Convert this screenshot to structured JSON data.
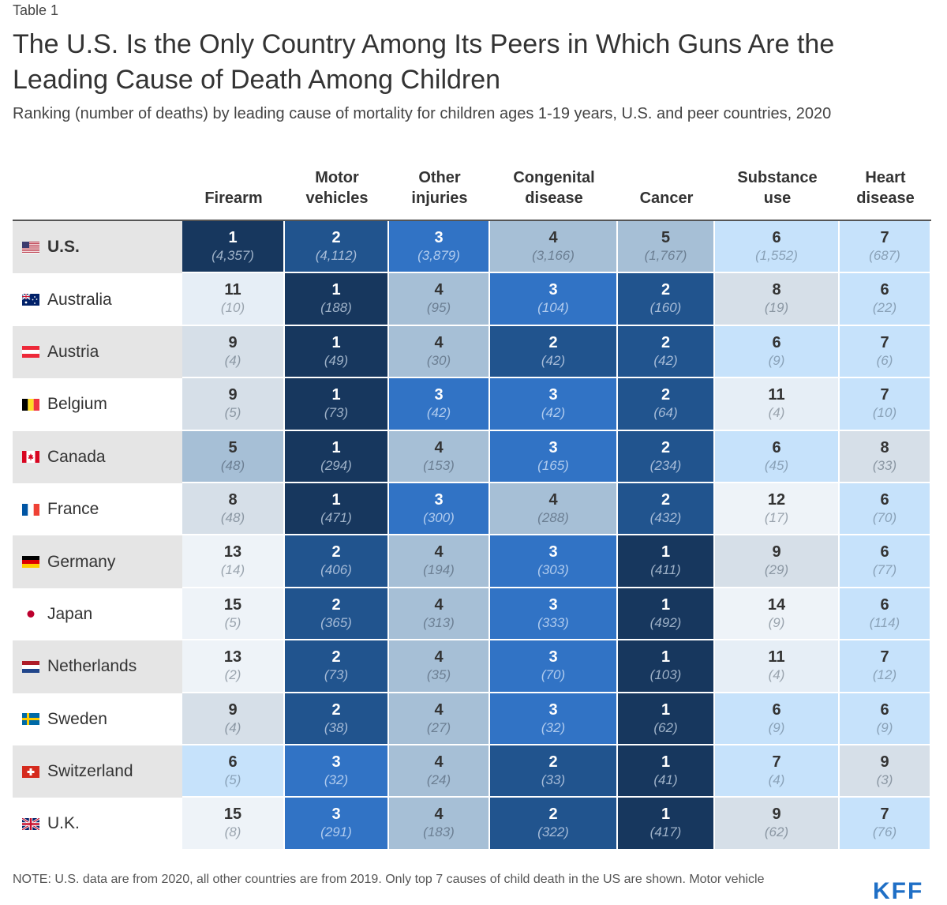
{
  "label": "Table 1",
  "title": "The U.S. Is the Only Country Among Its Peers in Which Guns Are the Leading Cause of Death Among Children",
  "subtitle": "Ranking (number of deaths) by leading cause of mortality for children ages 1-19 years, U.S. and peer countries, 2020",
  "note": "NOTE: U.S. data are from 2020, all other countries are from 2019. Only top 7 causes of child death in the US are shown. Motor vehicle",
  "logo": "KFF",
  "chart_data": {
    "type": "table",
    "columns": [
      {
        "key": "firearm",
        "lines": [
          "",
          "Firearm"
        ]
      },
      {
        "key": "motor_vehicles",
        "lines": [
          "Motor",
          "vehicles"
        ]
      },
      {
        "key": "other_injuries",
        "lines": [
          "Other",
          "injuries"
        ]
      },
      {
        "key": "congenital_disease",
        "lines": [
          "Congenital",
          "disease"
        ]
      },
      {
        "key": "cancer",
        "lines": [
          "",
          "Cancer"
        ]
      },
      {
        "key": "substance_use",
        "lines": [
          "Substance",
          "use"
        ]
      },
      {
        "key": "heart_disease",
        "lines": [
          "Heart",
          "disease"
        ]
      }
    ],
    "rows": [
      {
        "country": "U.S.",
        "flag": "us-flag-icon",
        "highlight": true,
        "ranks": [
          1,
          2,
          3,
          4,
          5,
          6,
          7
        ],
        "deaths": [
          "(4,357)",
          "(4,112)",
          "(3,879)",
          "(3,166)",
          "(1,767)",
          "(1,552)",
          "(687)"
        ]
      },
      {
        "country": "Australia",
        "flag": "australia-flag-icon",
        "ranks": [
          11,
          1,
          4,
          3,
          2,
          8,
          6
        ],
        "deaths": [
          "(10)",
          "(188)",
          "(95)",
          "(104)",
          "(160)",
          "(19)",
          "(22)"
        ]
      },
      {
        "country": "Austria",
        "flag": "austria-flag-icon",
        "ranks": [
          9,
          1,
          4,
          2,
          2,
          6,
          7
        ],
        "deaths": [
          "(4)",
          "(49)",
          "(30)",
          "(42)",
          "(42)",
          "(9)",
          "(6)"
        ]
      },
      {
        "country": "Belgium",
        "flag": "belgium-flag-icon",
        "ranks": [
          9,
          1,
          3,
          3,
          2,
          11,
          7
        ],
        "deaths": [
          "(5)",
          "(73)",
          "(42)",
          "(42)",
          "(64)",
          "(4)",
          "(10)"
        ]
      },
      {
        "country": "Canada",
        "flag": "canada-flag-icon",
        "ranks": [
          5,
          1,
          4,
          3,
          2,
          6,
          8
        ],
        "deaths": [
          "(48)",
          "(294)",
          "(153)",
          "(165)",
          "(234)",
          "(45)",
          "(33)"
        ]
      },
      {
        "country": "France",
        "flag": "france-flag-icon",
        "ranks": [
          8,
          1,
          3,
          4,
          2,
          12,
          6
        ],
        "deaths": [
          "(48)",
          "(471)",
          "(300)",
          "(288)",
          "(432)",
          "(17)",
          "(70)"
        ]
      },
      {
        "country": "Germany",
        "flag": "germany-flag-icon",
        "ranks": [
          13,
          2,
          4,
          3,
          1,
          9,
          6
        ],
        "deaths": [
          "(14)",
          "(406)",
          "(194)",
          "(303)",
          "(411)",
          "(29)",
          "(77)"
        ]
      },
      {
        "country": "Japan",
        "flag": "japan-flag-icon",
        "ranks": [
          15,
          2,
          4,
          3,
          1,
          14,
          6
        ],
        "deaths": [
          "(5)",
          "(365)",
          "(313)",
          "(333)",
          "(492)",
          "(9)",
          "(114)"
        ]
      },
      {
        "country": "Netherlands",
        "flag": "netherlands-flag-icon",
        "ranks": [
          13,
          2,
          4,
          3,
          1,
          11,
          7
        ],
        "deaths": [
          "(2)",
          "(73)",
          "(35)",
          "(70)",
          "(103)",
          "(4)",
          "(12)"
        ]
      },
      {
        "country": "Sweden",
        "flag": "sweden-flag-icon",
        "ranks": [
          9,
          2,
          4,
          3,
          1,
          6,
          6
        ],
        "deaths": [
          "(4)",
          "(38)",
          "(27)",
          "(32)",
          "(62)",
          "(9)",
          "(9)"
        ]
      },
      {
        "country": "Switzerland",
        "flag": "switzerland-flag-icon",
        "ranks": [
          6,
          3,
          4,
          2,
          1,
          7,
          9
        ],
        "deaths": [
          "(5)",
          "(32)",
          "(24)",
          "(33)",
          "(41)",
          "(4)",
          "(3)"
        ]
      },
      {
        "country": "U.K.",
        "flag": "uk-flag-icon",
        "ranks": [
          15,
          3,
          4,
          2,
          1,
          9,
          7
        ],
        "deaths": [
          "(8)",
          "(291)",
          "(183)",
          "(322)",
          "(417)",
          "(62)",
          "(76)"
        ]
      }
    ]
  }
}
